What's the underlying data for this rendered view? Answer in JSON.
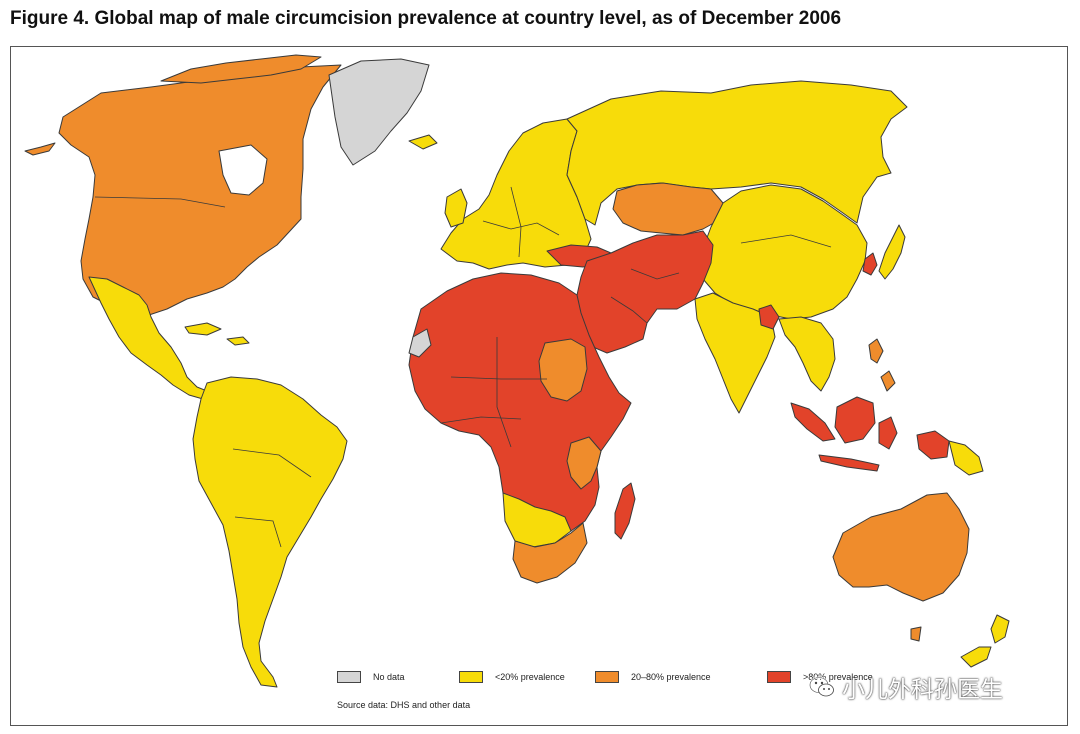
{
  "figure": {
    "title": "Figure 4. Global map of male circumcision prevalence at country level, as of December 2006",
    "source": "Source data: DHS and other data"
  },
  "colors": {
    "no_data": "#d5d5d5",
    "low": "#f7dc0a",
    "mid": "#ef8c2c",
    "high": "#e2432a",
    "outline": "#3a3a3a",
    "ocean": "#ffffff"
  },
  "legend": [
    {
      "label": "No data",
      "category": "no_data"
    },
    {
      "label": "<20% prevalence",
      "category": "low"
    },
    {
      "label": "20–80% prevalence",
      "category": "mid"
    },
    {
      "label": ">80% prevalence",
      "category": "high"
    }
  ],
  "regions": {
    "greenland": "no_data",
    "western_sahara": "no_data",
    "north_america": "mid",
    "central_america": "low",
    "south_america": "low",
    "caribbean": "low",
    "europe": "low",
    "russia": "low",
    "kazakhstan": "mid",
    "china_mongolia": "low",
    "south_asia": "low",
    "southeast_asia_mainland": "low",
    "north_africa": "high",
    "west_africa": "high",
    "horn_of_africa": "high",
    "central_africa": "high",
    "sudan": "mid",
    "east_africa": "mid",
    "southern_africa_low": "low",
    "south_africa": "mid",
    "madagascar": "high",
    "middle_east": "high",
    "central_asia_south": "high",
    "iran_afghanistan_pakistan": "high",
    "turkey": "high",
    "bangladesh": "high",
    "indonesia_malaysia": "high",
    "philippines": "mid",
    "south_korea": "high",
    "japan": "low",
    "australia": "mid",
    "new_zealand": "low",
    "papua": "low"
  },
  "watermark": {
    "text": "小儿外科孙医生",
    "icon": "wechat-icon"
  }
}
